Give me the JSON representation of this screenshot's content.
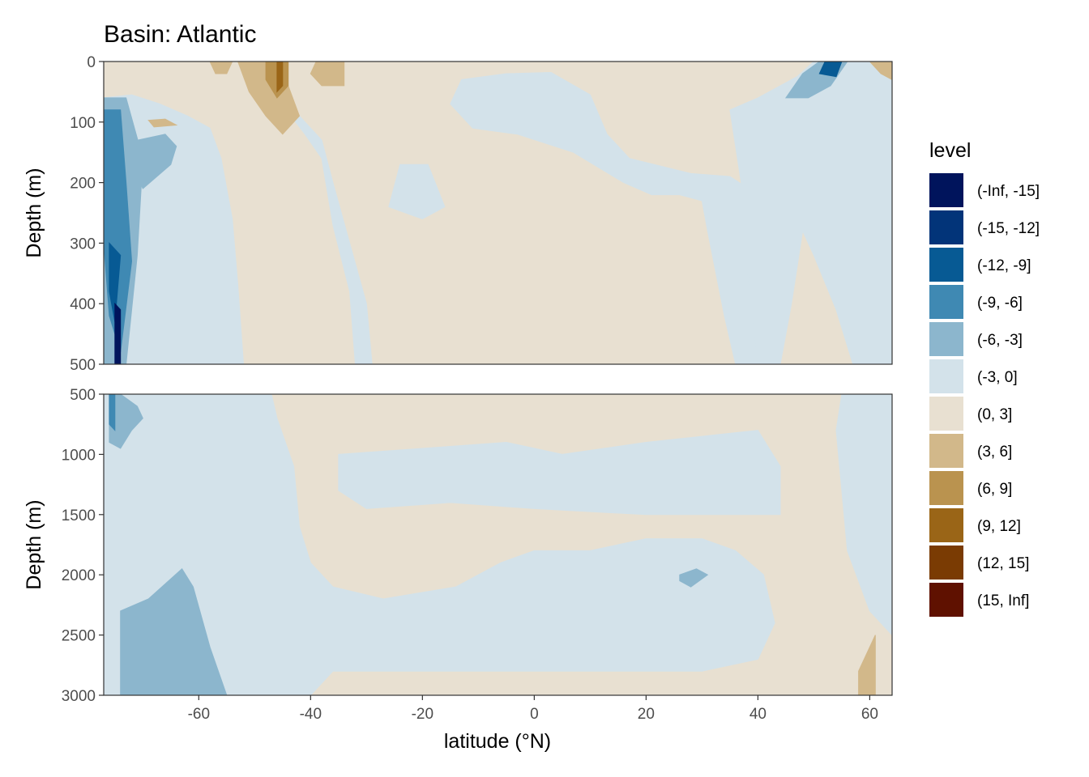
{
  "title": "Basin: Atlantic",
  "chart_data": {
    "type": "heatmap",
    "subtype": "filled-contour",
    "title": "Basin: Atlantic",
    "xlabel": "latitude (°N)",
    "ylabel": "Depth (m)",
    "xlim": [
      -77,
      64
    ],
    "x_ticks": [
      -60,
      -40,
      -20,
      0,
      20,
      40,
      60
    ],
    "panels": [
      {
        "name": "upper",
        "ylim": [
          0,
          500
        ],
        "y_ticks": [
          0,
          100,
          200,
          300,
          400,
          500
        ],
        "y_reversed": true
      },
      {
        "name": "lower",
        "ylim": [
          500,
          3000
        ],
        "y_ticks": [
          500,
          1000,
          1500,
          2000,
          2500,
          3000
        ],
        "y_reversed": true
      }
    ],
    "grid": false,
    "legend": {
      "title": "level",
      "position": "right",
      "levels": [
        {
          "label": "(-Inf, -15]",
          "color": "#00145c"
        },
        {
          "label": "(-15, -12]",
          "color": "#023479"
        },
        {
          "label": "(-12, -9]",
          "color": "#075a94"
        },
        {
          "label": "(-9, -6]",
          "color": "#3f89b3"
        },
        {
          "label": "(-6, -3]",
          "color": "#8cb6cd"
        },
        {
          "label": "(-3, 0]",
          "color": "#d3e2ea"
        },
        {
          "label": "(0, 3]",
          "color": "#e8e0d1"
        },
        {
          "label": "(3, 6]",
          "color": "#d2b88a"
        },
        {
          "label": "(6, 9]",
          "color": "#ba934f"
        },
        {
          "label": "(9, 12]",
          "color": "#9a6517"
        },
        {
          "label": "(12, 15]",
          "color": "#7a3b03"
        },
        {
          "label": "(15, Inf]",
          "color": "#5f1100"
        }
      ]
    },
    "regions": [
      {
        "panel": "upper",
        "level": "(-3, 0]",
        "polygon": [
          [
            -77,
            60
          ],
          [
            -72,
            55
          ],
          [
            -67,
            70
          ],
          [
            -62,
            90
          ],
          [
            -58,
            110
          ],
          [
            -56,
            160
          ],
          [
            -54,
            260
          ],
          [
            -53,
            370
          ],
          [
            -52,
            500
          ],
          [
            -77,
            500
          ]
        ]
      },
      {
        "panel": "upper",
        "level": "(-3, 0]",
        "polygon": [
          [
            -46,
            60
          ],
          [
            -41,
            120
          ],
          [
            -38,
            160
          ],
          [
            -36,
            270
          ],
          [
            -33,
            380
          ],
          [
            -32,
            500
          ],
          [
            -29,
            500
          ],
          [
            -30,
            400
          ],
          [
            -33,
            300
          ],
          [
            -36,
            200
          ],
          [
            -38,
            130
          ],
          [
            -42,
            90
          ]
        ]
      },
      {
        "panel": "upper",
        "level": "(-3, 0]",
        "polygon": [
          [
            -13,
            30
          ],
          [
            -5,
            20
          ],
          [
            3,
            18
          ],
          [
            10,
            55
          ],
          [
            13,
            120
          ],
          [
            17,
            160
          ],
          [
            28,
            185
          ],
          [
            35,
            190
          ],
          [
            40,
            220
          ],
          [
            42,
            300
          ],
          [
            42,
            500
          ],
          [
            36,
            500
          ],
          [
            34,
            420
          ],
          [
            31,
            280
          ],
          [
            30,
            230
          ],
          [
            26,
            220
          ],
          [
            21,
            220
          ],
          [
            16,
            200
          ],
          [
            7,
            150
          ],
          [
            -3,
            120
          ],
          [
            -11,
            110
          ],
          [
            -15,
            70
          ]
        ]
      },
      {
        "panel": "upper",
        "level": "(-3, 0]",
        "polygon": [
          [
            -24,
            170
          ],
          [
            -19,
            170
          ],
          [
            -16,
            240
          ],
          [
            -20,
            260
          ],
          [
            -26,
            240
          ]
        ]
      },
      {
        "panel": "upper",
        "level": "(-3, 0]",
        "polygon": [
          [
            35,
            80
          ],
          [
            40,
            60
          ],
          [
            47,
            25
          ],
          [
            50,
            0
          ],
          [
            64,
            0
          ],
          [
            64,
            500
          ],
          [
            57,
            500
          ],
          [
            54,
            410
          ],
          [
            50,
            320
          ],
          [
            48,
            280
          ],
          [
            46,
            400
          ],
          [
            44,
            500
          ],
          [
            40,
            500
          ],
          [
            38,
            330
          ],
          [
            37,
            200
          ]
        ]
      },
      {
        "panel": "upper",
        "level": "(-6, -3]",
        "polygon": [
          [
            -77,
            60
          ],
          [
            -73,
            60
          ],
          [
            -70,
            160
          ],
          [
            -71,
            320
          ],
          [
            -73,
            500
          ],
          [
            -77,
            500
          ]
        ]
      },
      {
        "panel": "upper",
        "level": "(-6, -3]",
        "polygon": [
          [
            -71,
            130
          ],
          [
            -66,
            120
          ],
          [
            -64,
            140
          ],
          [
            -65,
            170
          ],
          [
            -70,
            210
          ],
          [
            -72,
            170
          ]
        ]
      },
      {
        "panel": "upper",
        "level": "(-6, -3]",
        "polygon": [
          [
            -48,
            20
          ],
          [
            -46,
            60
          ],
          [
            -45,
            100
          ],
          [
            -47,
            80
          ],
          [
            -49,
            40
          ]
        ]
      },
      {
        "panel": "upper",
        "level": "(-6, -3]",
        "polygon": [
          [
            45,
            60
          ],
          [
            48,
            20
          ],
          [
            51,
            0
          ],
          [
            56,
            0
          ],
          [
            53,
            40
          ],
          [
            49,
            60
          ]
        ]
      },
      {
        "panel": "upper",
        "level": "(-9, -6]",
        "polygon": [
          [
            -77,
            80
          ],
          [
            -74,
            80
          ],
          [
            -73,
            200
          ],
          [
            -72,
            330
          ],
          [
            -74,
            480
          ],
          [
            -76,
            420
          ],
          [
            -77,
            300
          ]
        ]
      },
      {
        "panel": "upper",
        "level": "(-12, -9]",
        "polygon": [
          [
            -76,
            300
          ],
          [
            -74,
            320
          ],
          [
            -75,
            430
          ],
          [
            -76,
            380
          ]
        ]
      },
      {
        "panel": "upper",
        "level": "(-12, -9]",
        "polygon": [
          [
            52,
            0
          ],
          [
            55,
            0
          ],
          [
            54,
            25
          ],
          [
            51,
            20
          ]
        ]
      },
      {
        "panel": "upper",
        "level": "(-Inf, -15]",
        "polygon": [
          [
            -75,
            400
          ],
          [
            -74,
            410
          ],
          [
            -74,
            500
          ],
          [
            -75,
            500
          ]
        ]
      },
      {
        "panel": "upper",
        "level": "(3, 6]",
        "polygon": [
          [
            -53,
            0
          ],
          [
            -46,
            0
          ],
          [
            -44,
            40
          ],
          [
            -42,
            90
          ],
          [
            -45,
            120
          ],
          [
            -48,
            90
          ],
          [
            -51,
            50
          ]
        ]
      },
      {
        "panel": "upper",
        "level": "(3, 6]",
        "polygon": [
          [
            -39,
            0
          ],
          [
            -34,
            0
          ],
          [
            -34,
            40
          ],
          [
            -38,
            40
          ],
          [
            -40,
            20
          ]
        ]
      },
      {
        "panel": "upper",
        "level": "(3, 6]",
        "polygon": [
          [
            -69,
            97
          ],
          [
            -66,
            95
          ],
          [
            -64,
            105
          ],
          [
            -68,
            108
          ]
        ]
      },
      {
        "panel": "upper",
        "level": "(3, 6]",
        "polygon": [
          [
            -58,
            0
          ],
          [
            -54,
            0
          ],
          [
            -55,
            20
          ],
          [
            -57,
            20
          ]
        ]
      },
      {
        "panel": "upper",
        "level": "(6, 9]",
        "polygon": [
          [
            -48,
            0
          ],
          [
            -44,
            0
          ],
          [
            -44,
            40
          ],
          [
            -46,
            60
          ],
          [
            -48,
            30
          ]
        ]
      },
      {
        "panel": "upper",
        "level": "(9, 12]",
        "polygon": [
          [
            -46,
            0
          ],
          [
            -45,
            0
          ],
          [
            -45,
            40
          ],
          [
            -46,
            50
          ]
        ]
      },
      {
        "panel": "upper",
        "level": "(3, 6]",
        "polygon": [
          [
            60,
            0
          ],
          [
            64,
            0
          ],
          [
            64,
            30
          ],
          [
            62,
            20
          ]
        ]
      },
      {
        "panel": "lower",
        "level": "(-3, 0]",
        "polygon": [
          [
            -77,
            500
          ],
          [
            -47,
            500
          ],
          [
            -46,
            700
          ],
          [
            -43,
            1100
          ],
          [
            -42,
            1600
          ],
          [
            -40,
            1900
          ],
          [
            -36,
            2100
          ],
          [
            -27,
            2200
          ],
          [
            -14,
            2100
          ],
          [
            -6,
            1900
          ],
          [
            0,
            1800
          ],
          [
            10,
            1800
          ],
          [
            20,
            1700
          ],
          [
            30,
            1700
          ],
          [
            36,
            1800
          ],
          [
            41,
            2000
          ],
          [
            43,
            2400
          ],
          [
            40,
            2700
          ],
          [
            30,
            2800
          ],
          [
            15,
            2800
          ],
          [
            0,
            2800
          ],
          [
            -20,
            2800
          ],
          [
            -36,
            2800
          ],
          [
            -40,
            3000
          ],
          [
            -77,
            3000
          ]
        ]
      },
      {
        "panel": "lower",
        "level": "(-3, 0]",
        "polygon": [
          [
            -35,
            1000
          ],
          [
            -20,
            950
          ],
          [
            -5,
            900
          ],
          [
            5,
            1000
          ],
          [
            20,
            900
          ],
          [
            30,
            850
          ],
          [
            40,
            800
          ],
          [
            44,
            1100
          ],
          [
            44,
            1500
          ],
          [
            35,
            1500
          ],
          [
            20,
            1500
          ],
          [
            0,
            1450
          ],
          [
            -15,
            1400
          ],
          [
            -30,
            1450
          ],
          [
            -35,
            1300
          ]
        ]
      },
      {
        "panel": "lower",
        "level": "(-3, 0]",
        "polygon": [
          [
            55,
            500
          ],
          [
            64,
            500
          ],
          [
            64,
            2500
          ],
          [
            60,
            2300
          ],
          [
            56,
            1800
          ],
          [
            55,
            1300
          ],
          [
            54,
            800
          ]
        ]
      },
      {
        "panel": "lower",
        "level": "(-6, -3]",
        "polygon": [
          [
            -74,
            2300
          ],
          [
            -69,
            2200
          ],
          [
            -63,
            1950
          ],
          [
            -61,
            2100
          ],
          [
            -58,
            2600
          ],
          [
            -55,
            3000
          ],
          [
            -74,
            3000
          ]
        ]
      },
      {
        "panel": "lower",
        "level": "(-6, -3]",
        "polygon": [
          [
            26,
            2000
          ],
          [
            29,
            1950
          ],
          [
            31,
            2000
          ],
          [
            28,
            2100
          ],
          [
            26,
            2050
          ]
        ]
      },
      {
        "panel": "lower",
        "level": "(-6, -3]",
        "polygon": [
          [
            -76,
            500
          ],
          [
            -74,
            500
          ],
          [
            -71,
            600
          ],
          [
            -70,
            700
          ],
          [
            -72,
            800
          ],
          [
            -74,
            950
          ],
          [
            -76,
            900
          ]
        ]
      },
      {
        "panel": "lower",
        "level": "(-9, -6]",
        "polygon": [
          [
            -76,
            500
          ],
          [
            -75,
            500
          ],
          [
            -75,
            800
          ],
          [
            -76,
            750
          ]
        ]
      },
      {
        "panel": "lower",
        "level": "(3, 6]",
        "polygon": [
          [
            58,
            2800
          ],
          [
            61,
            2500
          ],
          [
            61,
            3000
          ],
          [
            58,
            3000
          ]
        ]
      }
    ]
  }
}
